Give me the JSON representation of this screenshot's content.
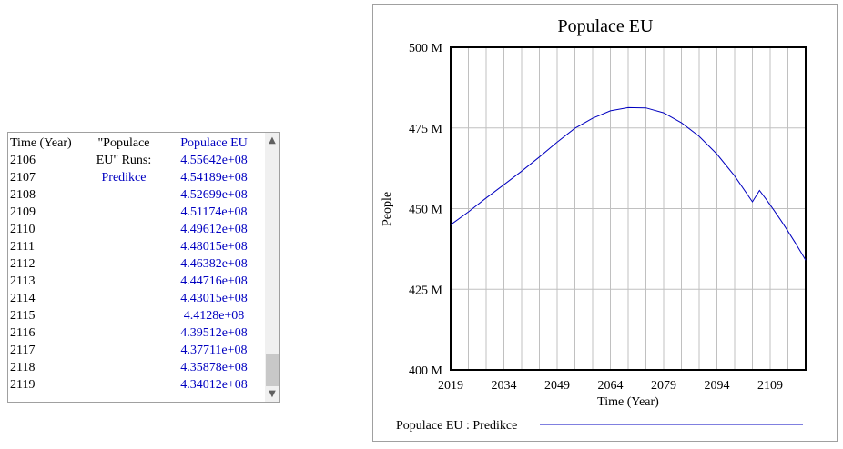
{
  "table": {
    "header_time": "Time (Year)",
    "header_runs_line1": "\"Populace",
    "header_runs_line2": "EU\"  Runs:",
    "run_name": "Predikce",
    "header_value": "Populace EU",
    "rows": [
      {
        "year": "2106",
        "value": "4.55642e+08"
      },
      {
        "year": "2107",
        "value": "4.54189e+08"
      },
      {
        "year": "2108",
        "value": "4.52699e+08"
      },
      {
        "year": "2109",
        "value": "4.51174e+08"
      },
      {
        "year": "2110",
        "value": "4.49612e+08"
      },
      {
        "year": "2111",
        "value": "4.48015e+08"
      },
      {
        "year": "2112",
        "value": "4.46382e+08"
      },
      {
        "year": "2113",
        "value": "4.44716e+08"
      },
      {
        "year": "2114",
        "value": "4.43015e+08"
      },
      {
        "year": "2115",
        "value": "4.4128e+08"
      },
      {
        "year": "2116",
        "value": "4.39512e+08"
      },
      {
        "year": "2117",
        "value": "4.37711e+08"
      },
      {
        "year": "2118",
        "value": "4.35878e+08"
      },
      {
        "year": "2119",
        "value": "4.34012e+08"
      }
    ]
  },
  "colors": {
    "series": "#0000c0",
    "grid": "#c0c0c0",
    "axes": "#000000"
  },
  "chart_data": {
    "type": "line",
    "title": "Populace EU",
    "xlabel": "Time (Year)",
    "ylabel": "People",
    "xlim": [
      2019,
      2119
    ],
    "ylim": [
      400000000,
      500000000
    ],
    "x_tick_values": [
      2019,
      2034,
      2049,
      2064,
      2079,
      2094,
      2109
    ],
    "x_tick_labels": [
      "2019",
      "2034",
      "2049",
      "2064",
      "2079",
      "2094",
      "2109"
    ],
    "y_tick_values": [
      400000000,
      425000000,
      450000000,
      475000000,
      500000000
    ],
    "y_tick_labels": [
      "400 M",
      "425 M",
      "450 M",
      "475 M",
      "500 M"
    ],
    "legend_label": "Populace EU : Predikce",
    "series": [
      {
        "name": "Populace EU : Predikce",
        "x": [
          2019,
          2024,
          2029,
          2034,
          2039,
          2044,
          2049,
          2054,
          2059,
          2064,
          2069,
          2074,
          2079,
          2084,
          2089,
          2094,
          2099,
          2104,
          2106,
          2108,
          2110,
          2112,
          2114,
          2116,
          2118,
          2119
        ],
        "values": [
          445000000,
          449000000,
          453300000,
          457400000,
          461600000,
          466000000,
          470600000,
          474900000,
          478000000,
          480300000,
          481300000,
          481200000,
          479700000,
          476600000,
          472400000,
          466900000,
          460100000,
          452100000,
          455642000,
          452699000,
          449612000,
          446382000,
          443015000,
          439512000,
          435878000,
          434012000
        ]
      }
    ]
  }
}
